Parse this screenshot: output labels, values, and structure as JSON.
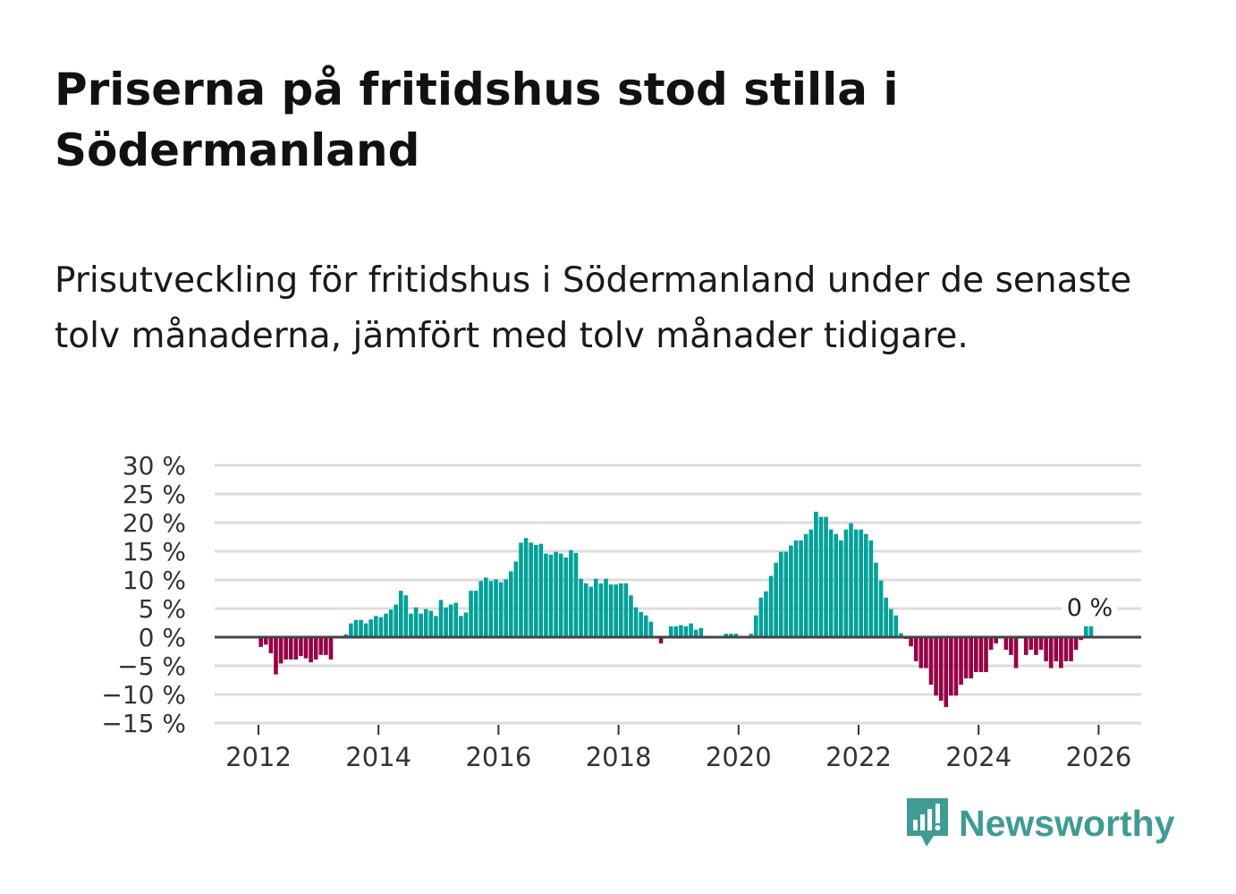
{
  "title": "Priserna på fritidshus stod stilla i Södermanland",
  "subtitle": "Prisutveckling för fritidshus i Södermanland under de senaste tolv månaderna, jämfört med tolv månader tidigare.",
  "brand": {
    "name": "Newsworthy",
    "color": "#3f9b94"
  },
  "chart_data": {
    "type": "bar",
    "title": "",
    "xlabel": "",
    "ylabel": "",
    "x_start": "2012-01",
    "x_end": "2025-11",
    "frequency": "monthly",
    "ylim": [
      -15,
      30
    ],
    "yticks": [
      30,
      25,
      20,
      15,
      10,
      5,
      0,
      -5,
      -10,
      -15
    ],
    "ytick_labels": [
      "30 %",
      "25 %",
      "20 %",
      "15 %",
      "10 %",
      "5 %",
      "0 %",
      "−5 %",
      "−10 %",
      "−15 %"
    ],
    "xticks": [
      2012,
      2014,
      2016,
      2018,
      2020,
      2022,
      2024,
      2026
    ],
    "xtick_labels": [
      "2012",
      "2014",
      "2016",
      "2018",
      "2020",
      "2022",
      "2024",
      "2026"
    ],
    "grid": true,
    "positive_color": "#00a199",
    "negative_color": "#960045",
    "annotation": "0 %",
    "values": [
      -1.7,
      -1.3,
      -2.8,
      -6.5,
      -4.6,
      -3.9,
      -3.9,
      -3.9,
      -3.3,
      -3.7,
      -4.4,
      -3.9,
      -3.1,
      -3.1,
      -3.9,
      0,
      0,
      0.5,
      2.4,
      3,
      3,
      2.4,
      3.1,
      3.7,
      3.5,
      4.1,
      4.8,
      5.7,
      8.1,
      7.3,
      4.1,
      5.2,
      4.1,
      4.9,
      4.6,
      3.7,
      6.5,
      5.2,
      5.7,
      6,
      3.7,
      4.3,
      8.1,
      8.1,
      9.8,
      10.4,
      9.8,
      10.1,
      9.6,
      10.1,
      11.5,
      13.2,
      16.5,
      17.3,
      16.5,
      16.1,
      16.3,
      14.6,
      14.4,
      14.9,
      14.6,
      13.9,
      15.2,
      14.7,
      10.2,
      9.4,
      8.8,
      10.2,
      9.4,
      10.2,
      9.2,
      9.2,
      9.4,
      9.4,
      7.3,
      5.2,
      4.4,
      3.8,
      2.7,
      0,
      -1.1,
      0,
      1.9,
      1.9,
      2.1,
      1.9,
      2.4,
      1.3,
      1.6,
      0,
      0,
      0,
      0,
      0.6,
      0.6,
      0.6,
      0,
      0,
      0.6,
      3.8,
      6.9,
      8,
      10.7,
      13,
      14.9,
      14.9,
      16,
      16.9,
      16.9,
      18,
      18.8,
      21.9,
      21,
      21,
      18.8,
      18,
      16.9,
      18.8,
      19.9,
      18.8,
      18.8,
      18,
      16.9,
      13,
      9.9,
      6.9,
      4.9,
      3.8,
      0.7,
      -0.3,
      -1.6,
      -4.2,
      -5.4,
      -5.4,
      -8.3,
      -10.2,
      -11.1,
      -12.2,
      -10.2,
      -10.2,
      -8.3,
      -7.2,
      -7.2,
      -6.1,
      -6.1,
      -6.1,
      -2.2,
      -1.1,
      0,
      -2.2,
      -3.1,
      -5.4,
      0,
      -3.1,
      -2.2,
      -3.1,
      -2.2,
      -4.2,
      -5.4,
      -4.2,
      -5.4,
      -4.2,
      -4.2,
      -2.2,
      -0.5,
      1.9,
      1.9
    ]
  }
}
